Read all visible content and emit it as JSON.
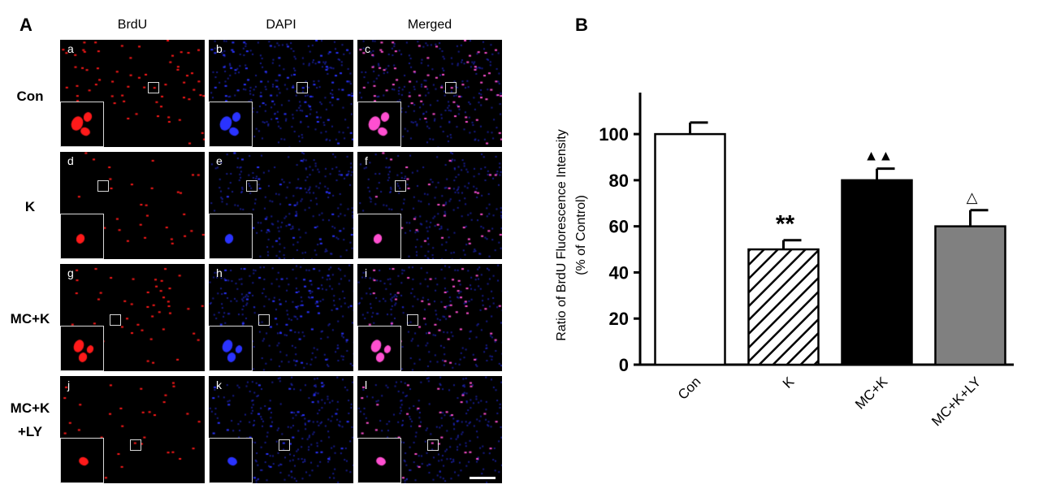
{
  "figure": {
    "panel_a_letter": "A",
    "panel_b_letter": "B",
    "column_headers": [
      "BrdU",
      "DAPI",
      "Merged"
    ],
    "rows": [
      {
        "label": "Con",
        "panels": [
          "a",
          "b",
          "c"
        ]
      },
      {
        "label": "K",
        "panels": [
          "d",
          "e",
          "f"
        ]
      },
      {
        "label": "MC+K",
        "panels": [
          "g",
          "h",
          "i"
        ]
      },
      {
        "label": "MC+K\n+LY",
        "panels": [
          "j",
          "k",
          "l"
        ]
      }
    ],
    "channel_colors": {
      "BrdU": "#ff1a1a",
      "DAPI": "#2a33ff",
      "Merged": "#ff4fd0"
    }
  },
  "chart_data": {
    "type": "bar",
    "categories": [
      "Con",
      "K",
      "MC+K",
      "MC+K+LY"
    ],
    "values": [
      100,
      50,
      80,
      60
    ],
    "errors": [
      5,
      4,
      5,
      7
    ],
    "annotations": [
      "",
      "**",
      "▲▲",
      "△"
    ],
    "bar_colors": [
      "#ffffff",
      "hatch",
      "#000000",
      "#808080"
    ],
    "title": "",
    "xlabel": "",
    "ylabel": "Ratio of BrdU Fluorescence Intensity\n(% of Control)",
    "ylim": [
      0,
      118
    ],
    "yticks": [
      0,
      20,
      40,
      60,
      80,
      100
    ],
    "grid": false
  }
}
